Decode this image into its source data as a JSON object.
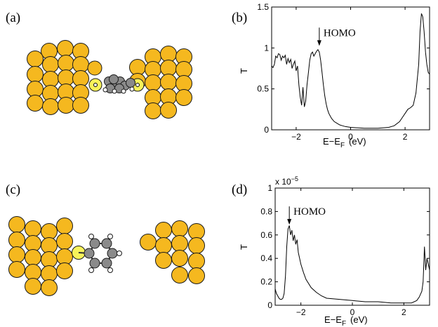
{
  "panels": [
    {
      "label": "(a)"
    },
    {
      "label": "(b)"
    },
    {
      "label": "(c)"
    },
    {
      "label": "(d)"
    }
  ],
  "colors": {
    "gold": "#f5b81f",
    "gold_stroke": "#1a1a1a",
    "sulfur": "#f7f25a",
    "carbon": "#8a8a8a",
    "hydrogen": "#ffffff",
    "line": "#000000"
  },
  "chart_data": [
    {
      "panel": "(b)",
      "type": "line",
      "xlabel_main": "E−E",
      "xlabel_sub": "F",
      "xlabel_unit": "(eV)",
      "ylabel": "T",
      "xlim": [
        -2.9,
        2.9
      ],
      "ylim": [
        0,
        1.5
      ],
      "xticks": [
        -2,
        0,
        2
      ],
      "xtick_labels": [
        "−2",
        "0",
        "2"
      ],
      "yticks": [
        0,
        0.5,
        1,
        1.5
      ],
      "ytick_labels": [
        "0",
        "0.5",
        "1",
        "1.5"
      ],
      "scale_note": "",
      "annotation": {
        "text": "HOMO",
        "x": -1.15,
        "y": 1.0
      },
      "series": [
        {
          "x": [
            -2.9,
            -2.85,
            -2.8,
            -2.75,
            -2.7,
            -2.65,
            -2.6,
            -2.55,
            -2.5,
            -2.45,
            -2.4,
            -2.35,
            -2.3,
            -2.25,
            -2.2,
            -2.15,
            -2.1,
            -2.05,
            -2.0,
            -1.95,
            -1.9,
            -1.85,
            -1.8,
            -1.75,
            -1.7,
            -1.65,
            -1.6,
            -1.55,
            -1.5,
            -1.45,
            -1.4,
            -1.35,
            -1.3,
            -1.25,
            -1.2,
            -1.15,
            -1.1,
            -1.05,
            -1.0,
            -0.95,
            -0.9,
            -0.85,
            -0.8,
            -0.7,
            -0.6,
            -0.5,
            -0.4,
            -0.3,
            -0.2,
            0.0,
            0.5,
            1.0,
            1.4,
            1.6,
            1.8,
            1.9,
            2.0,
            2.1,
            2.2,
            2.3,
            2.4,
            2.5,
            2.55,
            2.6,
            2.65,
            2.7,
            2.75,
            2.8,
            2.85,
            2.9
          ],
          "y": [
            0.78,
            0.76,
            0.8,
            0.9,
            0.88,
            0.93,
            0.92,
            0.85,
            0.9,
            0.88,
            0.91,
            0.8,
            0.87,
            0.82,
            0.86,
            0.75,
            0.8,
            0.84,
            0.72,
            0.78,
            0.55,
            0.4,
            0.3,
            0.52,
            0.28,
            0.35,
            0.55,
            0.7,
            0.85,
            0.93,
            0.95,
            0.9,
            0.93,
            0.96,
            0.98,
            0.95,
            0.85,
            0.7,
            0.55,
            0.42,
            0.32,
            0.25,
            0.2,
            0.14,
            0.1,
            0.08,
            0.06,
            0.05,
            0.04,
            0.03,
            0.02,
            0.02,
            0.03,
            0.05,
            0.1,
            0.15,
            0.2,
            0.25,
            0.27,
            0.3,
            0.45,
            0.8,
            1.2,
            1.42,
            1.38,
            1.2,
            0.95,
            0.8,
            0.7,
            0.68
          ]
        }
      ]
    },
    {
      "panel": "(d)",
      "type": "line",
      "xlabel_main": "E−E",
      "xlabel_sub": "F",
      "xlabel_unit": "(eV)",
      "ylabel": "T",
      "xlim": [
        -3.0,
        3.0
      ],
      "ylim": [
        0,
        1
      ],
      "xticks": [
        -2,
        0,
        2
      ],
      "xtick_labels": [
        "−2",
        "0",
        "2"
      ],
      "yticks": [
        0,
        0.2,
        0.4,
        0.6,
        0.8,
        1
      ],
      "ytick_labels": [
        "0",
        "0.2",
        "0.4",
        "0.6",
        "0.8",
        "1"
      ],
      "scale_note": "x 10",
      "scale_exp": "−5",
      "annotation": {
        "text": "HOMO",
        "x": -2.45,
        "y": 0.67
      },
      "series": [
        {
          "x": [
            -3.0,
            -2.95,
            -2.9,
            -2.85,
            -2.8,
            -2.75,
            -2.7,
            -2.65,
            -2.6,
            -2.55,
            -2.5,
            -2.45,
            -2.4,
            -2.35,
            -2.3,
            -2.25,
            -2.2,
            -2.15,
            -2.1,
            -2.0,
            -1.9,
            -1.8,
            -1.6,
            -1.4,
            -1.2,
            -1.0,
            -0.5,
            0.0,
            0.5,
            1.0,
            1.5,
            2.0,
            2.3,
            2.5,
            2.6,
            2.7,
            2.75,
            2.8,
            2.85,
            2.9,
            2.95,
            3.0
          ],
          "y": [
            0.14,
            0.1,
            0.08,
            0.06,
            0.05,
            0.05,
            0.06,
            0.1,
            0.25,
            0.5,
            0.65,
            0.68,
            0.6,
            0.64,
            0.55,
            0.6,
            0.52,
            0.56,
            0.45,
            0.35,
            0.28,
            0.22,
            0.15,
            0.11,
            0.08,
            0.06,
            0.05,
            0.04,
            0.03,
            0.03,
            0.02,
            0.02,
            0.02,
            0.04,
            0.07,
            0.12,
            0.2,
            0.5,
            0.3,
            0.4,
            0.35,
            0.3
          ]
        }
      ]
    }
  ]
}
